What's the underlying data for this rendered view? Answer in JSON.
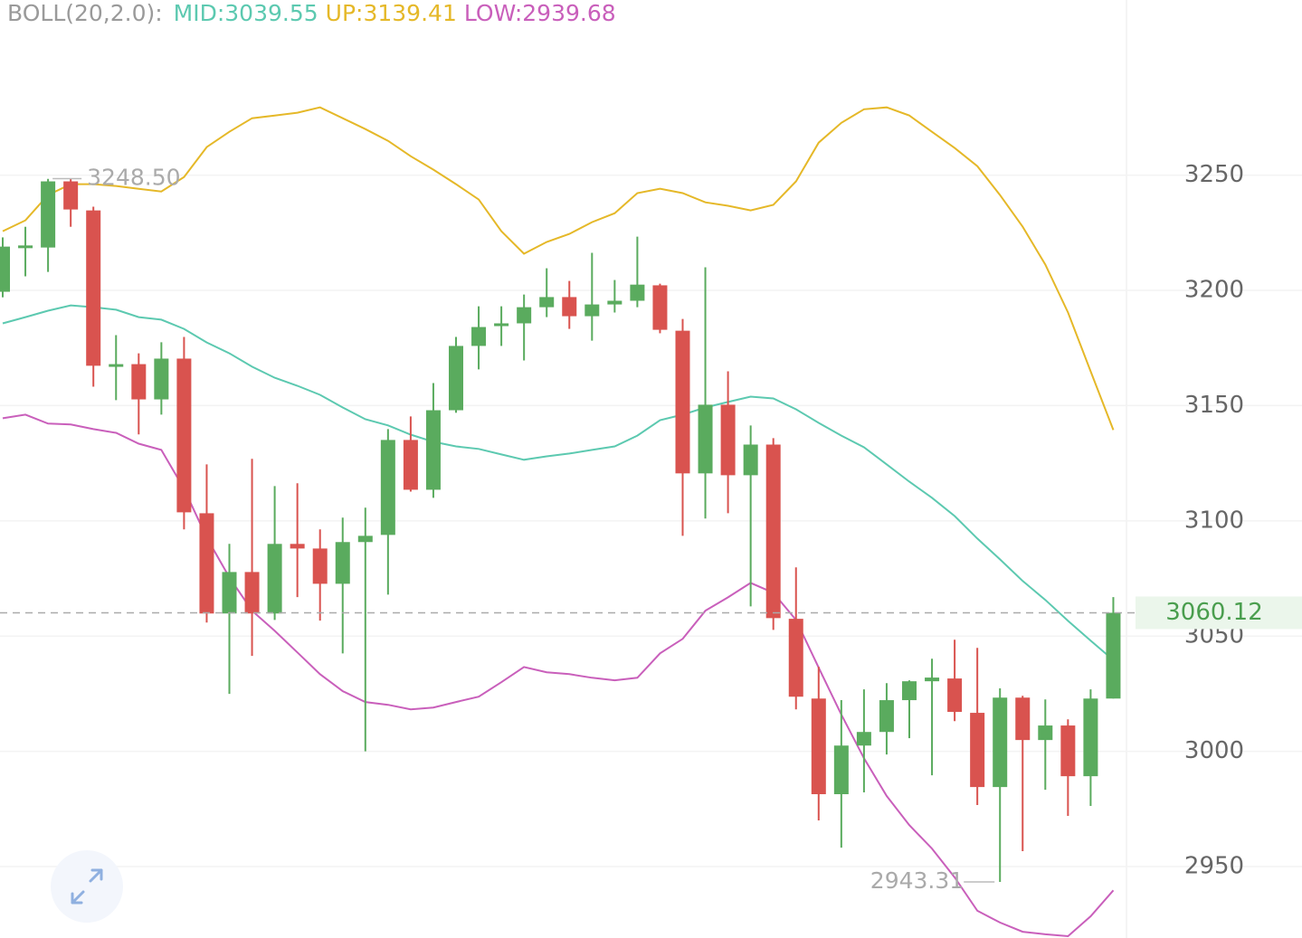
{
  "chart_data": {
    "type": "candlestick",
    "indicator": "BOLL(20,2.0):",
    "ylim": [
      2919,
      3326
    ],
    "yticks": [
      2950,
      3000,
      3050,
      3100,
      3150,
      3200,
      3250
    ],
    "grid": true,
    "up_color": "#5aab5e",
    "down_color": "#d9534f",
    "open": [
      3199.4,
      3219,
      3218.6,
      3247.3,
      3234.7,
      3167.5,
      3168,
      3152.7,
      3170.4,
      3103.3,
      3059.8,
      3077.8,
      3059.8,
      3090,
      3088,
      3072.7,
      3090.8,
      3093.9,
      3135.1,
      3113.5,
      3148,
      3175.9,
      3184.5,
      3185.7,
      3192.7,
      3197.1,
      3188.8,
      3193.9,
      3195.5,
      3202.2,
      3182.5,
      3120.6,
      3150.4,
      3119.8,
      3133.1,
      3057.5,
      3022.9,
      2981.4,
      3002.5,
      3008.4,
      3022.2,
      3030.4,
      3031.6,
      3016.7,
      2984.5,
      3023.3,
      3004.9,
      3011.2,
      2989.2,
      3022.9
    ],
    "high": [
      3223,
      3227.6,
      3248.4,
      3248.5,
      3236.3,
      3180.6,
      3172.7,
      3177.5,
      3179.8,
      3124.5,
      3090,
      3126.9,
      3115.1,
      3116.3,
      3096.3,
      3101.4,
      3105.7,
      3139.8,
      3145.3,
      3159.8,
      3179.8,
      3193.1,
      3193.1,
      3198.2,
      3209.6,
      3204.1,
      3216.3,
      3204.5,
      3223.3,
      3202.9,
      3187.6,
      3210,
      3164.9,
      3141.4,
      3135.9,
      3079.8,
      3036.7,
      3022.2,
      3026.9,
      3029.6,
      3030.8,
      3040.2,
      3048.4,
      3044.9,
      3027.3,
      3024.1,
      3022.5,
      3013.9,
      3026.9,
      3066.9
    ],
    "low": [
      3197,
      3206.1,
      3208,
      3227.6,
      3158.2,
      3152.4,
      3137.5,
      3146.1,
      3096.3,
      3055.9,
      3024.9,
      3041.4,
      3057,
      3066.9,
      3056.7,
      3042.5,
      3000,
      3068,
      3112.7,
      3110,
      3146.9,
      3165.7,
      3175.9,
      3169.6,
      3188.4,
      3183.3,
      3178.2,
      3190.4,
      3192.7,
      3181.4,
      3093.5,
      3101,
      3103.3,
      3062.9,
      3052.7,
      3018.2,
      2970,
      2958.2,
      2982.2,
      2998.6,
      3005.7,
      2989.6,
      3013.1,
      2976.7,
      2943.31,
      2956.7,
      2983.3,
      2972,
      2976.3,
      3022.9
    ],
    "close": [
      3219,
      3219.5,
      3247.3,
      3235.1,
      3167.3,
      3168,
      3152.7,
      3170.4,
      3103.7,
      3059.8,
      3077.8,
      3059.8,
      3090,
      3088,
      3072.7,
      3090.8,
      3093.5,
      3135.1,
      3113.5,
      3148,
      3175.9,
      3184.1,
      3185.7,
      3192.7,
      3197.1,
      3188.8,
      3193.9,
      3195.5,
      3202.5,
      3182.9,
      3120.6,
      3150.4,
      3119.8,
      3133.1,
      3057.8,
      3023.7,
      2981.4,
      3002.5,
      3008.4,
      3022.2,
      3030.4,
      3032,
      3017.1,
      2984.5,
      3023.3,
      3004.9,
      3011.2,
      2989.2,
      3022.9,
      3060.12
    ],
    "max_label": {
      "value": 3248.5,
      "label": "3248.50"
    },
    "series": [
      {
        "name": "MID:",
        "color": "#5cc9b0",
        "values": [
          3185.7,
          3188.4,
          3191.2,
          3193.5,
          3192.7,
          3191.6,
          3188.4,
          3187.3,
          3183.3,
          3177.4,
          3172.7,
          3166.9,
          3162.1,
          3158.6,
          3154.7,
          3149.2,
          3144.1,
          3141.4,
          3137.4,
          3134.3,
          3132.3,
          3131.2,
          3128.8,
          3126.5,
          3128,
          3129.2,
          3130.8,
          3132.3,
          3137,
          3143.7,
          3146.1,
          3149.2,
          3151.6,
          3153.9,
          3153.1,
          3148.4,
          3142.5,
          3137,
          3131.9,
          3124.5,
          3117,
          3110,
          3102.1,
          3092.3,
          3083.3,
          3073.9,
          3065.7,
          3056.6,
          3048,
          3039.55
        ]
      },
      {
        "name": "UP:",
        "color": "#e5b828",
        "values": [
          3225.7,
          3230.4,
          3241.4,
          3246.1,
          3246.1,
          3245.3,
          3244.1,
          3242.9,
          3249.2,
          3262.2,
          3268.8,
          3274.7,
          3275.9,
          3277.1,
          3279.4,
          3274.7,
          3270,
          3264.9,
          3258.2,
          3252.4,
          3246.1,
          3239.4,
          3225.7,
          3215.9,
          3221,
          3224.5,
          3229.6,
          3233.5,
          3242.2,
          3244.1,
          3242.2,
          3238.2,
          3236.7,
          3234.7,
          3237.1,
          3247.3,
          3264.1,
          3272.7,
          3278.6,
          3279.4,
          3275.9,
          3268.8,
          3261.8,
          3253.9,
          3241.4,
          3227.6,
          3211.2,
          3190.4,
          3164.9,
          3139.41
        ]
      },
      {
        "name": "LOW:",
        "color": "#c95fbb",
        "values": [
          3144.5,
          3146.1,
          3142.2,
          3141.8,
          3139.8,
          3138.2,
          3133.5,
          3130.8,
          3113.9,
          3092.7,
          3075.5,
          3061,
          3052.3,
          3042.9,
          3033.5,
          3026.1,
          3021.4,
          3020.2,
          3018.2,
          3019,
          3021.4,
          3023.7,
          3030,
          3036.6,
          3034.3,
          3033.5,
          3031.9,
          3030.8,
          3031.9,
          3042.5,
          3048.8,
          3061,
          3066.8,
          3073.1,
          3068.8,
          3057,
          3036.3,
          3015.9,
          2997,
          2980.6,
          2968,
          2957.8,
          2945.3,
          2930.8,
          2925.7,
          2921.7,
          2920.6,
          2919.8,
          2928.4,
          2939.68
        ]
      }
    ]
  }
}
